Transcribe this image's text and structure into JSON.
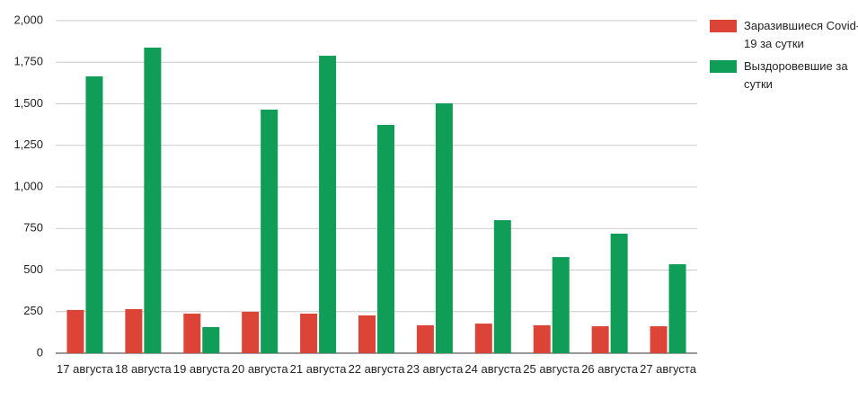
{
  "chart_data": {
    "type": "bar",
    "categories": [
      "17 августа",
      "18 августа",
      "19 августа",
      "20 августа",
      "21 августа",
      "22 августа",
      "23 августа",
      "24 августа",
      "25 августа",
      "26 августа",
      "27 августа"
    ],
    "series": [
      {
        "name": "Заразившиеся Covid-19 за сутки",
        "color": "#db4437",
        "values": [
          260,
          265,
          238,
          249,
          238,
          227,
          168,
          178,
          168,
          162,
          162
        ]
      },
      {
        "name": "Выздоровевшие за сутки",
        "color": "#0f9d58",
        "values": [
          1665,
          1838,
          157,
          1465,
          1789,
          1373,
          1503,
          800,
          578,
          719,
          535
        ]
      }
    ],
    "ylim": [
      0,
      2000
    ],
    "yticks": [
      0,
      250,
      500,
      750,
      {
        "value": 1000,
        "label": "1,000"
      },
      {
        "value": 1250,
        "label": "1,250"
      },
      {
        "value": 1500,
        "label": "1,500"
      },
      {
        "value": 1750,
        "label": "1,750"
      },
      {
        "value": 2000,
        "label": "2,000"
      }
    ],
    "grid": true,
    "legend": "right"
  }
}
